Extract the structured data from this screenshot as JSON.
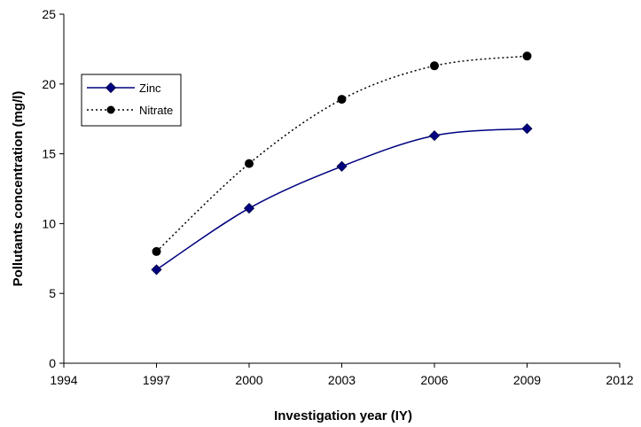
{
  "chart_data": {
    "type": "line",
    "title": "",
    "xlabel": "Investigation year (IY)",
    "ylabel": "Pollutants concentration (mg/l)",
    "xlim": [
      1994,
      2012
    ],
    "ylim": [
      0,
      25
    ],
    "xticks": [
      1994,
      1997,
      2000,
      2003,
      2006,
      2009,
      2012
    ],
    "yticks": [
      0,
      5,
      10,
      15,
      20,
      25
    ],
    "grid": false,
    "legend_position": "top-left",
    "series": [
      {
        "name": "Zinc",
        "color": "#000080",
        "line_style": "solid",
        "marker": "diamond",
        "x": [
          1997,
          2000,
          2003,
          2006,
          2009
        ],
        "y": [
          6.7,
          11.1,
          14.1,
          16.3,
          16.8
        ]
      },
      {
        "name": "Nitrate",
        "color": "#000000",
        "line_style": "dotted",
        "marker": "circle",
        "x": [
          1997,
          2000,
          2003,
          2006,
          2009
        ],
        "y": [
          8.0,
          14.3,
          18.9,
          21.3,
          22.0
        ]
      }
    ]
  }
}
